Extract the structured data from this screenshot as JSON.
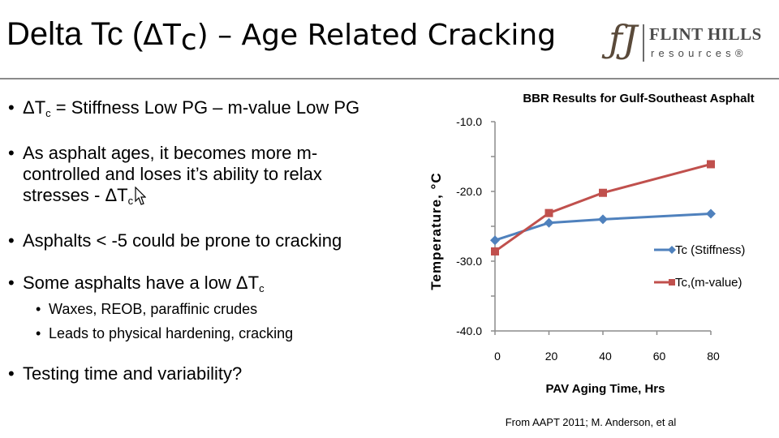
{
  "slide": {
    "title_a": "Delta Tc (",
    "title_delta_t": "ΔT",
    "title_sub": "c",
    "title_b": ") – Age Related Cracking",
    "logo": {
      "line1": "FLINT HILLS",
      "line2": "resources®"
    },
    "bullets": {
      "b1_a": "ΔT",
      "b1_sub": "c",
      "b1_b": " = Stiffness Low PG – m-value Low PG",
      "b2_line1": "As asphalt ages, it becomes more m-",
      "b2_line2": "controlled and loses it’s ability to relax",
      "b2_line3_a": "stresses -  ΔT",
      "b2_line3_sub": "c",
      "b3": "Asphalts < -5 could be prone to cracking",
      "b4_a": "Some asphalts have a low ΔT",
      "b4_sub": "c",
      "sub1": "Waxes, REOB, paraffinic crudes",
      "sub2": "Leads to physical hardening, cracking",
      "b5": "Testing time and variability?"
    },
    "bullet_char": "•",
    "source_note": "From AAPT 2011; M. Anderson, et al"
  },
  "chart_data": {
    "type": "line",
    "title": "BBR Results for Gulf-Southeast Asphalt",
    "xlabel": "PAV Aging Time, Hrs",
    "ylabel": "Temperature, °C",
    "xlim": [
      0,
      80
    ],
    "ylim": [
      -40,
      -10
    ],
    "x_ticks": [
      0,
      20,
      40,
      60,
      80
    ],
    "y_ticks": [
      -10,
      -20,
      -30,
      -40
    ],
    "y_tick_labels": [
      "-10.0",
      "-20.0",
      "-30.0",
      "-40.0"
    ],
    "grid": false,
    "legend_position": "right",
    "series": [
      {
        "name": "Tc (Stiffness)",
        "color": "#4f81bd",
        "marker": "diamond",
        "x": [
          0,
          20,
          40,
          80
        ],
        "y": [
          -27.0,
          -24.5,
          -24.0,
          -23.2
        ]
      },
      {
        "name": "Tc,(m-value)",
        "color": "#c0504d",
        "marker": "square",
        "x": [
          0,
          20,
          40,
          80
        ],
        "y": [
          -28.6,
          -23.1,
          -20.2,
          -16.1
        ]
      }
    ]
  }
}
